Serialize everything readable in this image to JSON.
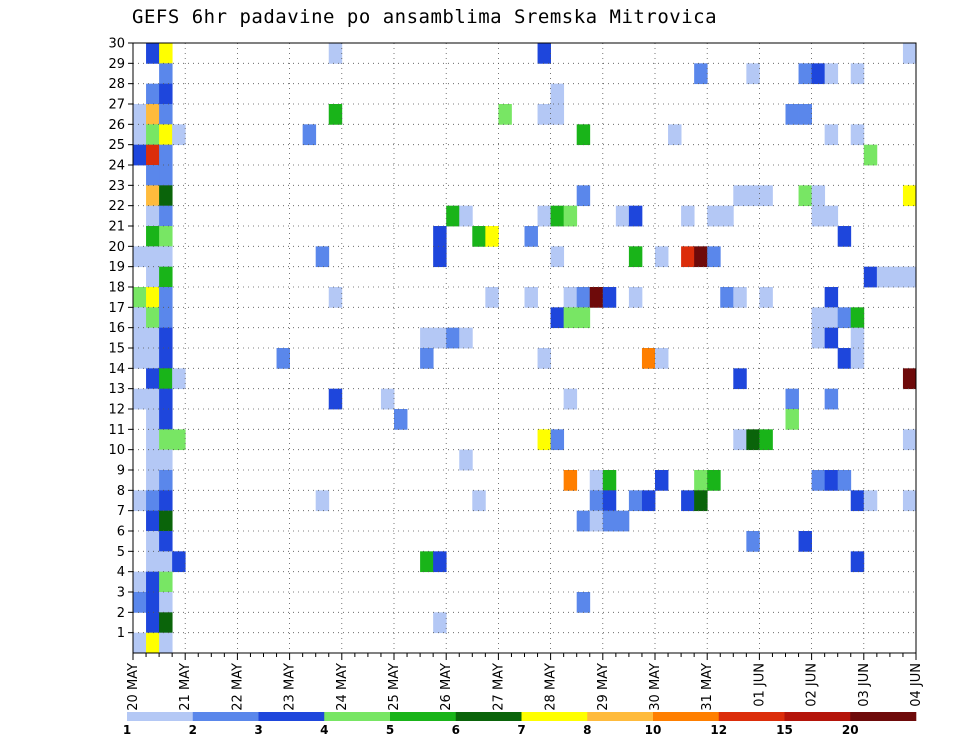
{
  "chart_data": {
    "type": "heatmap",
    "title": "GEFS 6hr padavine po ansamblima Sremska Mitrovica",
    "y_ticks": [
      1,
      2,
      3,
      4,
      5,
      6,
      7,
      8,
      9,
      10,
      11,
      12,
      13,
      14,
      15,
      16,
      17,
      18,
      19,
      20,
      21,
      22,
      23,
      24,
      25,
      26,
      27,
      28,
      29,
      30
    ],
    "x_tick_labels": [
      "20 MAY",
      "21 MAY",
      "22 MAY",
      "23 MAY",
      "24 MAY",
      "25 MAY",
      "26 MAY",
      "27 MAY",
      "28 MAY",
      "29 MAY",
      "30 MAY",
      "31 MAY",
      "01 JUN",
      "02 JUN",
      "03 JUN",
      "04 JUN"
    ],
    "x_steps_per_day": 4,
    "x_range_steps": [
      0,
      60
    ],
    "y_range": [
      0,
      30
    ],
    "grid": "dotted",
    "legend_placement": "bottom",
    "legend_thresholds": [
      "1",
      "2",
      "3",
      "4",
      "5",
      "6",
      "7",
      "8",
      "10",
      "12",
      "15",
      "20"
    ],
    "legend_colors": [
      "#b4c8f5",
      "#5a87eb",
      "#1e46dc",
      "#78e664",
      "#19b419",
      "#0a640a",
      "#ffff00",
      "#ffbb3c",
      "#ff7f00",
      "#dc2d0a",
      "#b4140a",
      "#6e0a0a"
    ],
    "cells_format": "[member, step_index (6h from 20 MAY 00Z), class_index (0..11)]",
    "cells": [
      [
        30,
        1,
        2
      ],
      [
        30,
        2,
        6
      ],
      [
        30,
        15,
        0
      ],
      [
        30,
        31,
        2
      ],
      [
        30,
        59,
        0
      ],
      [
        29,
        2,
        1
      ],
      [
        29,
        43,
        1
      ],
      [
        29,
        47,
        0
      ],
      [
        29,
        51,
        1
      ],
      [
        29,
        52,
        2
      ],
      [
        29,
        53,
        0
      ],
      [
        29,
        55,
        0
      ],
      [
        28,
        1,
        1
      ],
      [
        28,
        2,
        2
      ],
      [
        28,
        32,
        0
      ],
      [
        27,
        0,
        0
      ],
      [
        27,
        1,
        7
      ],
      [
        27,
        2,
        1
      ],
      [
        27,
        15,
        4
      ],
      [
        27,
        28,
        3
      ],
      [
        27,
        31,
        0
      ],
      [
        27,
        32,
        0
      ],
      [
        27,
        50,
        1
      ],
      [
        27,
        51,
        1
      ],
      [
        26,
        0,
        0
      ],
      [
        26,
        1,
        3
      ],
      [
        26,
        2,
        6
      ],
      [
        26,
        3,
        0
      ],
      [
        26,
        13,
        1
      ],
      [
        26,
        34,
        4
      ],
      [
        26,
        41,
        0
      ],
      [
        26,
        53,
        0
      ],
      [
        26,
        55,
        0
      ],
      [
        25,
        0,
        2
      ],
      [
        25,
        1,
        9
      ],
      [
        25,
        2,
        1
      ],
      [
        25,
        56,
        3
      ],
      [
        24,
        1,
        1
      ],
      [
        24,
        2,
        1
      ],
      [
        23,
        1,
        7
      ],
      [
        23,
        2,
        5
      ],
      [
        23,
        34,
        1
      ],
      [
        23,
        46,
        0
      ],
      [
        23,
        47,
        0
      ],
      [
        23,
        48,
        0
      ],
      [
        23,
        51,
        3
      ],
      [
        23,
        52,
        0
      ],
      [
        23,
        59,
        6
      ],
      [
        22,
        1,
        0
      ],
      [
        22,
        2,
        1
      ],
      [
        22,
        24,
        4
      ],
      [
        22,
        25,
        0
      ],
      [
        22,
        31,
        0
      ],
      [
        22,
        32,
        4
      ],
      [
        22,
        33,
        3
      ],
      [
        22,
        37,
        0
      ],
      [
        22,
        38,
        2
      ],
      [
        22,
        42,
        0
      ],
      [
        22,
        44,
        0
      ],
      [
        22,
        45,
        0
      ],
      [
        22,
        52,
        0
      ],
      [
        22,
        53,
        0
      ],
      [
        21,
        1,
        4
      ],
      [
        21,
        2,
        3
      ],
      [
        21,
        23,
        2
      ],
      [
        21,
        26,
        4
      ],
      [
        21,
        27,
        6
      ],
      [
        21,
        30,
        1
      ],
      [
        21,
        54,
        2
      ],
      [
        20,
        0,
        0
      ],
      [
        20,
        1,
        0
      ],
      [
        20,
        2,
        0
      ],
      [
        20,
        14,
        1
      ],
      [
        20,
        23,
        2
      ],
      [
        20,
        32,
        0
      ],
      [
        20,
        38,
        4
      ],
      [
        20,
        40,
        0
      ],
      [
        20,
        42,
        9
      ],
      [
        20,
        43,
        11
      ],
      [
        20,
        44,
        1
      ],
      [
        19,
        1,
        0
      ],
      [
        19,
        2,
        4
      ],
      [
        19,
        56,
        2
      ],
      [
        19,
        57,
        0
      ],
      [
        19,
        58,
        0
      ],
      [
        19,
        59,
        0
      ],
      [
        18,
        0,
        3
      ],
      [
        18,
        1,
        6
      ],
      [
        18,
        2,
        1
      ],
      [
        18,
        15,
        0
      ],
      [
        18,
        27,
        0
      ],
      [
        18,
        30,
        0
      ],
      [
        18,
        33,
        0
      ],
      [
        18,
        34,
        1
      ],
      [
        18,
        35,
        11
      ],
      [
        18,
        36,
        2
      ],
      [
        18,
        38,
        0
      ],
      [
        18,
        45,
        1
      ],
      [
        18,
        46,
        0
      ],
      [
        18,
        48,
        0
      ],
      [
        18,
        53,
        2
      ],
      [
        17,
        0,
        0
      ],
      [
        17,
        1,
        3
      ],
      [
        17,
        2,
        1
      ],
      [
        17,
        32,
        2
      ],
      [
        17,
        33,
        3
      ],
      [
        17,
        34,
        3
      ],
      [
        17,
        52,
        0
      ],
      [
        17,
        53,
        0
      ],
      [
        17,
        54,
        1
      ],
      [
        17,
        55,
        4
      ],
      [
        16,
        0,
        0
      ],
      [
        16,
        1,
        0
      ],
      [
        16,
        2,
        2
      ],
      [
        16,
        22,
        0
      ],
      [
        16,
        23,
        0
      ],
      [
        16,
        24,
        1
      ],
      [
        16,
        25,
        0
      ],
      [
        16,
        52,
        0
      ],
      [
        16,
        53,
        2
      ],
      [
        16,
        55,
        0
      ],
      [
        15,
        0,
        0
      ],
      [
        15,
        1,
        0
      ],
      [
        15,
        2,
        2
      ],
      [
        15,
        11,
        1
      ],
      [
        15,
        22,
        1
      ],
      [
        15,
        31,
        0
      ],
      [
        15,
        39,
        8
      ],
      [
        15,
        40,
        0
      ],
      [
        15,
        54,
        2
      ],
      [
        15,
        55,
        0
      ],
      [
        14,
        1,
        2
      ],
      [
        14,
        2,
        4
      ],
      [
        14,
        3,
        0
      ],
      [
        14,
        46,
        2
      ],
      [
        14,
        59,
        11
      ],
      [
        13,
        0,
        0
      ],
      [
        13,
        1,
        0
      ],
      [
        13,
        2,
        2
      ],
      [
        13,
        15,
        2
      ],
      [
        13,
        19,
        0
      ],
      [
        13,
        33,
        0
      ],
      [
        13,
        50,
        1
      ],
      [
        13,
        53,
        1
      ],
      [
        12,
        1,
        0
      ],
      [
        12,
        2,
        2
      ],
      [
        12,
        20,
        1
      ],
      [
        12,
        50,
        3
      ],
      [
        11,
        1,
        0
      ],
      [
        11,
        2,
        3
      ],
      [
        11,
        3,
        3
      ],
      [
        11,
        31,
        6
      ],
      [
        11,
        32,
        1
      ],
      [
        11,
        46,
        0
      ],
      [
        11,
        47,
        5
      ],
      [
        11,
        48,
        4
      ],
      [
        11,
        59,
        0
      ],
      [
        10,
        1,
        0
      ],
      [
        10,
        2,
        0
      ],
      [
        10,
        25,
        0
      ],
      [
        9,
        1,
        0
      ],
      [
        9,
        2,
        1
      ],
      [
        9,
        33,
        8
      ],
      [
        9,
        35,
        0
      ],
      [
        9,
        36,
        4
      ],
      [
        9,
        40,
        2
      ],
      [
        9,
        43,
        3
      ],
      [
        9,
        44,
        4
      ],
      [
        9,
        52,
        1
      ],
      [
        9,
        53,
        2
      ],
      [
        9,
        54,
        1
      ],
      [
        8,
        0,
        0
      ],
      [
        8,
        1,
        1
      ],
      [
        8,
        2,
        2
      ],
      [
        8,
        14,
        0
      ],
      [
        8,
        26,
        0
      ],
      [
        8,
        35,
        1
      ],
      [
        8,
        36,
        2
      ],
      [
        8,
        38,
        1
      ],
      [
        8,
        39,
        2
      ],
      [
        8,
        42,
        2
      ],
      [
        8,
        43,
        5
      ],
      [
        8,
        55,
        2
      ],
      [
        8,
        56,
        0
      ],
      [
        8,
        59,
        0
      ],
      [
        7,
        1,
        2
      ],
      [
        7,
        2,
        5
      ],
      [
        7,
        34,
        1
      ],
      [
        7,
        35,
        0
      ],
      [
        7,
        36,
        1
      ],
      [
        7,
        37,
        1
      ],
      [
        6,
        1,
        0
      ],
      [
        6,
        2,
        2
      ],
      [
        6,
        47,
        1
      ],
      [
        6,
        51,
        2
      ],
      [
        5,
        1,
        0
      ],
      [
        5,
        2,
        0
      ],
      [
        5,
        3,
        2
      ],
      [
        5,
        22,
        4
      ],
      [
        5,
        23,
        2
      ],
      [
        5,
        55,
        2
      ],
      [
        4,
        0,
        0
      ],
      [
        4,
        1,
        2
      ],
      [
        4,
        2,
        3
      ],
      [
        3,
        0,
        1
      ],
      [
        3,
        1,
        2
      ],
      [
        3,
        2,
        0
      ],
      [
        3,
        34,
        1
      ],
      [
        2,
        1,
        2
      ],
      [
        2,
        2,
        5
      ],
      [
        2,
        23,
        0
      ],
      [
        1,
        0,
        0
      ],
      [
        1,
        1,
        6
      ],
      [
        1,
        2,
        0
      ]
    ]
  }
}
